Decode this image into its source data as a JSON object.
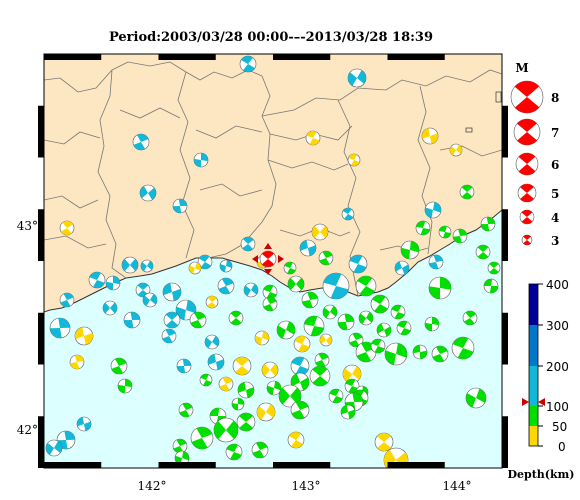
{
  "title": "Period:2003/03/28 00:00-–-2013/03/28 18:39",
  "axes": {
    "lon_labels": [
      "142°",
      "143°",
      "144°"
    ],
    "lat_labels": [
      "43°",
      "42°"
    ]
  },
  "magnitude_legend": {
    "heading": "M",
    "items": [
      {
        "label": "8",
        "magnitude": 8
      },
      {
        "label": "7",
        "magnitude": 7
      },
      {
        "label": "6",
        "magnitude": 6
      },
      {
        "label": "5",
        "magnitude": 5
      },
      {
        "label": "4",
        "magnitude": 4
      },
      {
        "label": "3",
        "magnitude": 3
      }
    ]
  },
  "depth_colorbar": {
    "labels": [
      "400",
      "300",
      "200",
      "100",
      "50",
      "0"
    ],
    "axis_label": "Depth(km)",
    "colors": {
      "0-50": "#ffd700",
      "50-100": "#00e000",
      "100-200": "#11b8d8",
      "200-300": "#0077c8",
      "300-400": "#000099"
    },
    "marker_depth_km": 100
  },
  "colors": {
    "land": "#fde6c2",
    "sea": "#dcffff",
    "border": "#333333",
    "focal_white": "#ffffff",
    "highlight": "#ff0000"
  },
  "icons": {
    "selected_event": "red-star-event-marker-icon"
  }
}
